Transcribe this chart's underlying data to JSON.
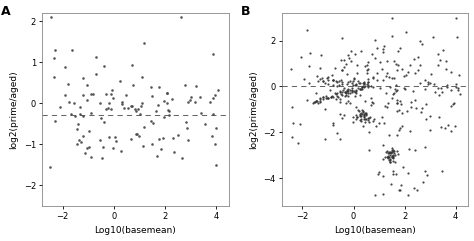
{
  "panel_A": {
    "label": "A",
    "xlim": [
      -2.8,
      4.5
    ],
    "ylim": [
      -2.5,
      2.2
    ],
    "xticks": [
      -2,
      0,
      2,
      4
    ],
    "yticks": [
      -2,
      -1,
      0,
      1,
      2
    ],
    "xlabel": "Log10(basemean)",
    "ylabel": "log2(prime/aged)",
    "hline_y": -0.3,
    "dot_color": "#444444",
    "dot_size": 3.5,
    "seed": 42
  },
  "panel_B": {
    "label": "B",
    "xlim": [
      -2.8,
      4.5
    ],
    "ylim": [
      -5.2,
      3.2
    ],
    "xticks": [
      -2,
      0,
      2,
      4
    ],
    "yticks": [
      -4,
      -2,
      0,
      2
    ],
    "xlabel": "Log10(basemean)",
    "ylabel": "log2(prime/aged)",
    "hline_y": 0.0,
    "dot_color": "#333333",
    "dot_size": 2.5,
    "seed": 7
  },
  "background_color": "#ffffff",
  "font_family": "DejaVu Sans"
}
